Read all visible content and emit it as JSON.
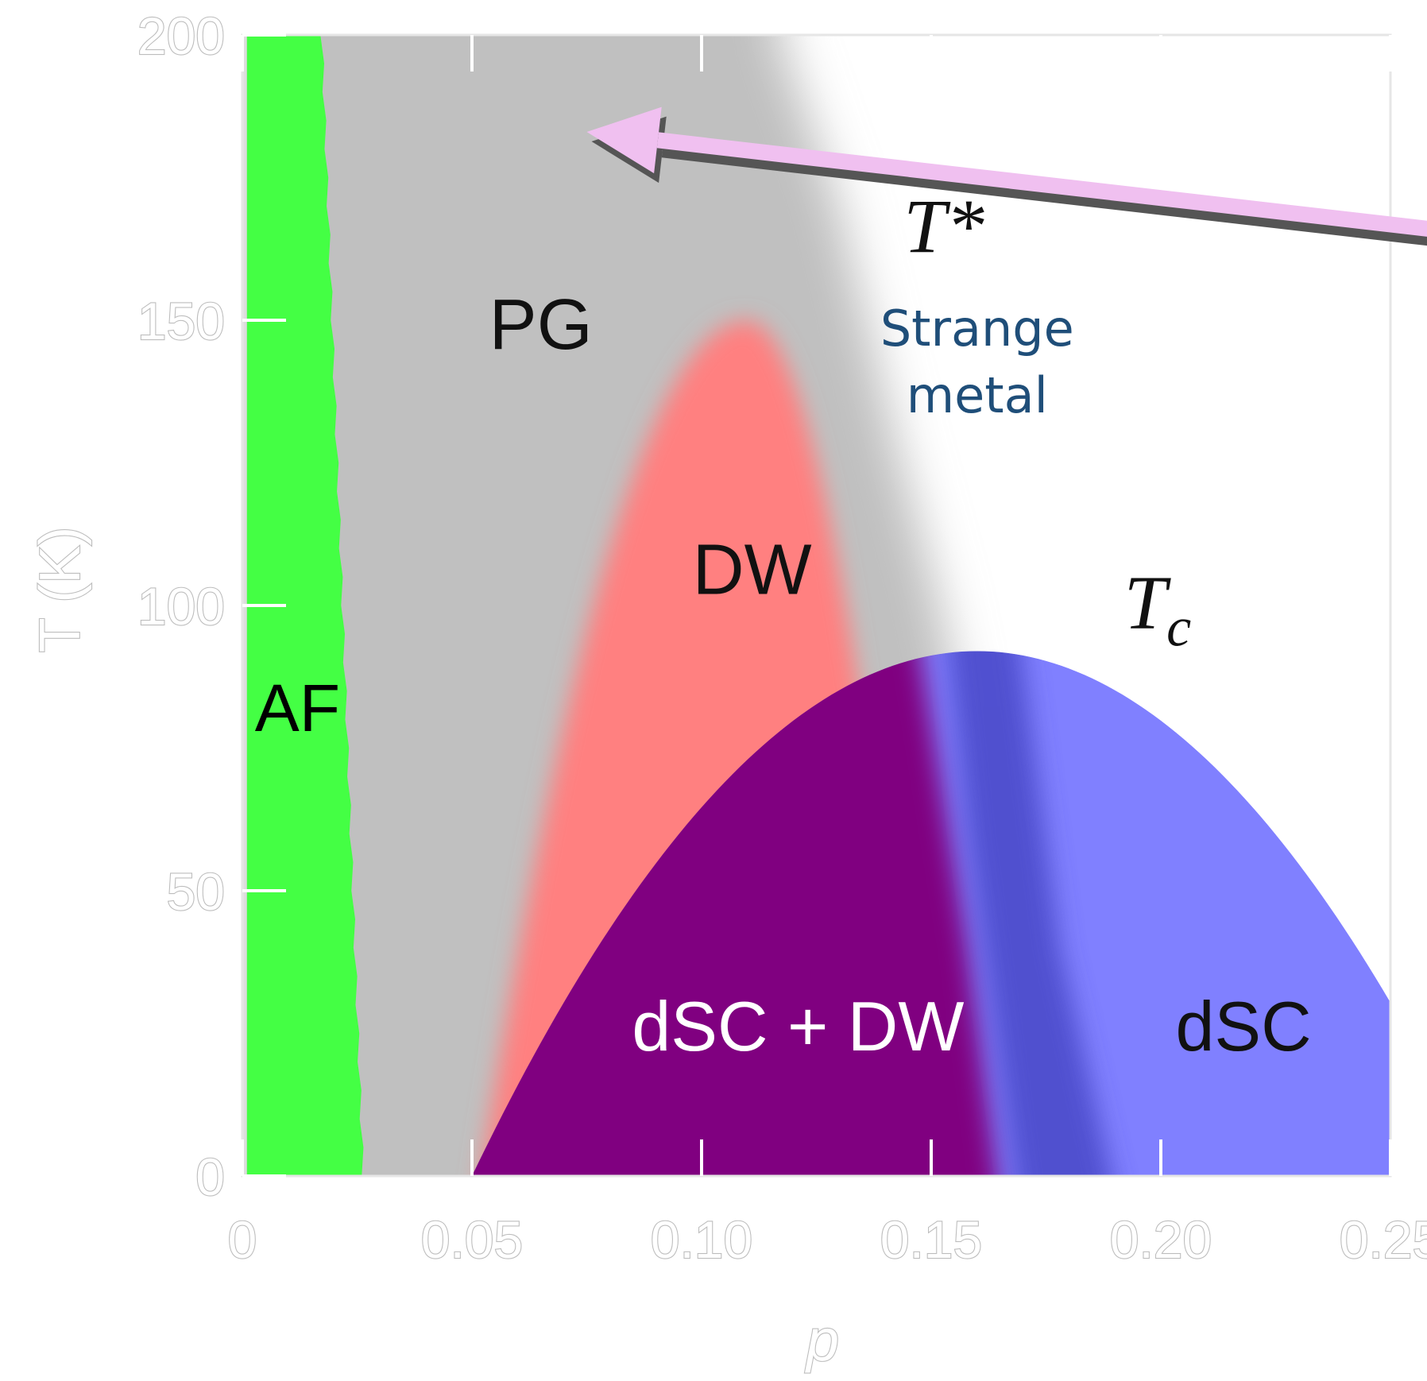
{
  "chart_data": {
    "type": "phase-diagram",
    "title": "",
    "xlabel": "p",
    "ylabel": "T (K)",
    "xlim": [
      0,
      0.25
    ],
    "ylim": [
      0,
      200
    ],
    "x_ticks": [
      {
        "value": 0,
        "label": "0"
      },
      {
        "value": 0.05,
        "label": "0.05"
      },
      {
        "value": 0.1,
        "label": "0.10"
      },
      {
        "value": 0.15,
        "label": "0.15"
      },
      {
        "value": 0.2,
        "label": "0.20"
      },
      {
        "value": 0.25,
        "label": "0.25"
      }
    ],
    "y_ticks": [
      {
        "value": 0,
        "label": "0"
      },
      {
        "value": 50,
        "label": "50"
      },
      {
        "value": 100,
        "label": "100"
      },
      {
        "value": 150,
        "label": "150"
      },
      {
        "value": 200,
        "label": "200"
      }
    ],
    "regions": [
      {
        "key": "af",
        "label": "AF",
        "color": "#44ff44",
        "p_max": 0.025,
        "label_at": [
          0.012,
          78
        ]
      },
      {
        "key": "pg",
        "label": "PG",
        "color": "#c0c0c0",
        "label_at": [
          0.065,
          145
        ]
      },
      {
        "key": "dw",
        "label": "DW",
        "color": "#ff8080",
        "p_range": [
          0.052,
          0.147
        ],
        "T_max": 150,
        "p_peak": 0.11,
        "label_at": [
          0.111,
          102
        ]
      },
      {
        "key": "dsc_dw",
        "label": "dSC + DW",
        "color": "#800080",
        "label_at": [
          0.121,
          22
        ]
      },
      {
        "key": "dsc",
        "label": "dSC",
        "color": "#8080ff",
        "label_at": [
          0.218,
          22
        ]
      }
    ],
    "curves": [
      {
        "key": "tc",
        "label": "T",
        "subscript": "c",
        "p_range": [
          0.05,
          0.27
        ],
        "p_peak": 0.16,
        "T_max": 92,
        "label_at": [
          0.192,
          96
        ]
      },
      {
        "key": "tstar",
        "label": "T*",
        "points": [
          [
            0.117,
            200
          ],
          [
            0.13,
            170
          ],
          [
            0.142,
            130
          ],
          [
            0.152,
            100
          ]
        ],
        "label_at": [
          0.144,
          162
        ]
      }
    ],
    "annotations": [
      {
        "text": "Strange metal",
        "lines": [
          "Strange",
          "metal"
        ],
        "color": "#1f4e79",
        "at": [
          0.16,
          140
        ]
      }
    ],
    "arrow": {
      "from": [
        0.28,
        164
      ],
      "to": [
        0.075,
        183
      ],
      "color": "#f0c0f0"
    }
  }
}
